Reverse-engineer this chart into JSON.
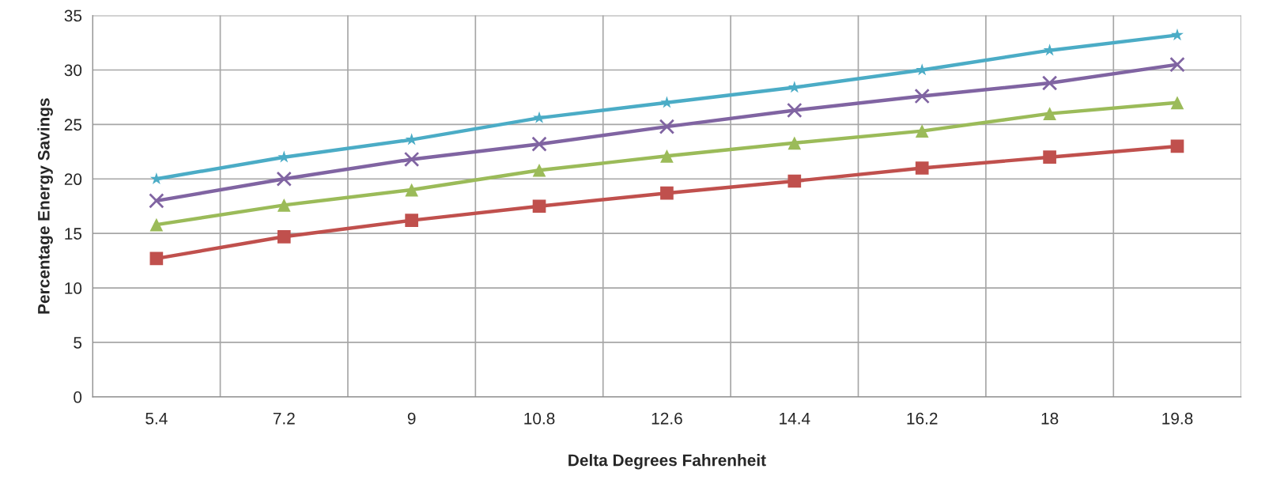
{
  "chart_data": {
    "type": "line",
    "xlabel": "Delta Degrees Fahrenheit",
    "ylabel": "Percentage Energy Savings",
    "categories": [
      "5.4",
      "7.2",
      "9",
      "10.8",
      "12.6",
      "14.4",
      "16.2",
      "18",
      "19.8"
    ],
    "ylim": [
      0,
      35
    ],
    "yticks": [
      0,
      5,
      10,
      15,
      20,
      25,
      30,
      35
    ],
    "grid": true,
    "series": [
      {
        "color": "#4bacc6",
        "marker": "star",
        "values": [
          20,
          22,
          23.6,
          25.6,
          27,
          28.4,
          30,
          31.8,
          33.2
        ]
      },
      {
        "color": "#8064a2",
        "marker": "cross",
        "values": [
          18,
          20,
          21.8,
          23.2,
          24.8,
          26.3,
          27.6,
          28.8,
          30.5
        ]
      },
      {
        "color": "#9bbb59",
        "marker": "triangle",
        "values": [
          15.8,
          17.6,
          19,
          20.8,
          22.1,
          23.3,
          24.4,
          26,
          27
        ]
      },
      {
        "color": "#c0504d",
        "marker": "square",
        "values": [
          12.7,
          14.7,
          16.2,
          17.5,
          18.7,
          19.8,
          21,
          22,
          23
        ]
      }
    ]
  }
}
